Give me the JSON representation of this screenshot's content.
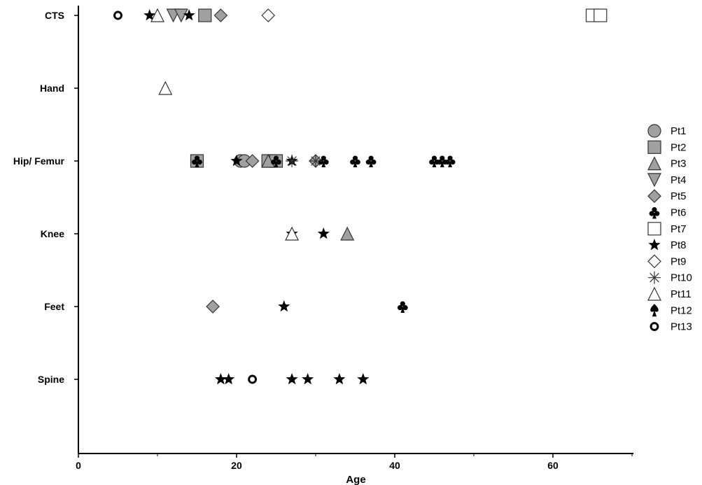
{
  "chart_data": {
    "type": "scatter",
    "title": "",
    "xlabel": "Age",
    "ylabel": "",
    "xlim": [
      0,
      70
    ],
    "xticks": [
      0,
      20,
      40,
      60
    ],
    "y_categories": [
      "CTS",
      "Hand",
      "Hip/ Femur",
      "Knee",
      "Feet",
      "Spine"
    ],
    "grid": false,
    "legend_position": "right",
    "series": [
      {
        "name": "Pt1",
        "marker": "circle",
        "fill": "#a0a0a0",
        "stroke": "#333333",
        "points": [
          {
            "x": 20.5,
            "y": "Hip/ Femur"
          },
          {
            "x": 21,
            "y": "Hip/ Femur"
          }
        ]
      },
      {
        "name": "Pt2",
        "marker": "square",
        "fill": "#a0a0a0",
        "stroke": "#333333",
        "points": [
          {
            "x": 16,
            "y": "CTS"
          },
          {
            "x": 15,
            "y": "Hip/ Femur"
          },
          {
            "x": 24,
            "y": "Hip/ Femur"
          },
          {
            "x": 25,
            "y": "Hip/ Femur"
          }
        ]
      },
      {
        "name": "Pt3",
        "marker": "triangle-up",
        "fill": "#a0a0a0",
        "stroke": "#333333",
        "points": [
          {
            "x": 24,
            "y": "Hip/ Femur"
          },
          {
            "x": 34,
            "y": "Knee"
          }
        ]
      },
      {
        "name": "Pt4",
        "marker": "triangle-down",
        "fill": "#a0a0a0",
        "stroke": "#333333",
        "points": [
          {
            "x": 12,
            "y": "CTS"
          },
          {
            "x": 13,
            "y": "CTS"
          }
        ]
      },
      {
        "name": "Pt5",
        "marker": "diamond",
        "fill": "#a0a0a0",
        "stroke": "#333333",
        "points": [
          {
            "x": 18,
            "y": "CTS"
          },
          {
            "x": 22,
            "y": "Hip/ Femur"
          },
          {
            "x": 30,
            "y": "Hip/ Femur"
          },
          {
            "x": 17,
            "y": "Feet"
          }
        ]
      },
      {
        "name": "Pt6",
        "marker": "club",
        "fill": "#000000",
        "stroke": "#000000",
        "points": [
          {
            "x": 15,
            "y": "Hip/ Femur"
          },
          {
            "x": 25,
            "y": "Hip/ Femur"
          },
          {
            "x": 31,
            "y": "Hip/ Femur"
          },
          {
            "x": 35,
            "y": "Hip/ Femur"
          },
          {
            "x": 37,
            "y": "Hip/ Femur"
          },
          {
            "x": 45,
            "y": "Hip/ Femur"
          },
          {
            "x": 46,
            "y": "Hip/ Femur"
          },
          {
            "x": 47,
            "y": "Hip/ Femur"
          },
          {
            "x": 41,
            "y": "Feet"
          }
        ]
      },
      {
        "name": "Pt7",
        "marker": "square-open",
        "fill": "#ffffff",
        "stroke": "#333333",
        "points": [
          {
            "x": 65,
            "y": "CTS"
          },
          {
            "x": 66,
            "y": "CTS"
          }
        ]
      },
      {
        "name": "Pt8",
        "marker": "star",
        "fill": "#000000",
        "stroke": "#000000",
        "points": [
          {
            "x": 9,
            "y": "CTS"
          },
          {
            "x": 14,
            "y": "CTS"
          },
          {
            "x": 20,
            "y": "Hip/ Femur"
          },
          {
            "x": 27,
            "y": "Hip/ Femur"
          },
          {
            "x": 27,
            "y": "Knee"
          },
          {
            "x": 31,
            "y": "Knee"
          },
          {
            "x": 26,
            "y": "Feet"
          },
          {
            "x": 18,
            "y": "Spine"
          },
          {
            "x": 19,
            "y": "Spine"
          },
          {
            "x": 27,
            "y": "Spine"
          },
          {
            "x": 29,
            "y": "Spine"
          },
          {
            "x": 33,
            "y": "Spine"
          },
          {
            "x": 36,
            "y": "Spine"
          }
        ]
      },
      {
        "name": "Pt9",
        "marker": "diamond-open",
        "fill": "#ffffff",
        "stroke": "#333333",
        "points": [
          {
            "x": 24,
            "y": "CTS"
          }
        ]
      },
      {
        "name": "Pt10",
        "marker": "asterisk",
        "fill": "none",
        "stroke": "#333333",
        "points": [
          {
            "x": 27,
            "y": "Hip/ Femur"
          },
          {
            "x": 30,
            "y": "Hip/ Femur"
          }
        ]
      },
      {
        "name": "Pt11",
        "marker": "triangle-open",
        "fill": "#ffffff",
        "stroke": "#333333",
        "points": [
          {
            "x": 10,
            "y": "CTS"
          },
          {
            "x": 11,
            "y": "Hand"
          },
          {
            "x": 27,
            "y": "Knee"
          }
        ]
      },
      {
        "name": "Pt12",
        "marker": "spade",
        "fill": "#000000",
        "stroke": "#000000",
        "points": []
      },
      {
        "name": "Pt13",
        "marker": "ring",
        "fill": "none",
        "stroke": "#000000",
        "points": [
          {
            "x": 5,
            "y": "CTS"
          },
          {
            "x": 22,
            "y": "Spine"
          }
        ]
      }
    ]
  }
}
